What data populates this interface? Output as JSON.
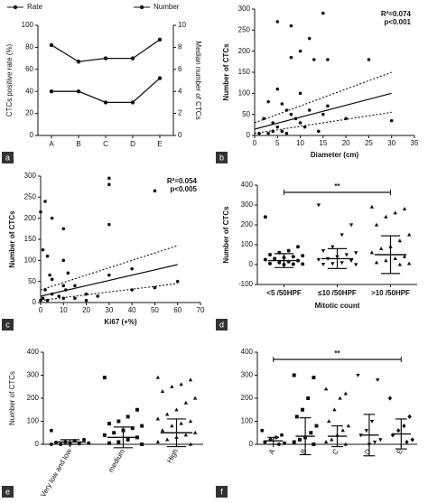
{
  "chart_data": [
    {
      "type": "line",
      "label": "a",
      "categories": [
        "A",
        "B",
        "C",
        "D",
        "E"
      ],
      "series": [
        {
          "name": "Rate",
          "color": "#111111",
          "values": [
            82,
            67,
            70,
            70,
            87
          ]
        },
        {
          "name": "Number",
          "color": "#111111",
          "axis": "y2",
          "values": [
            4,
            4,
            3,
            3,
            5.2
          ]
        }
      ],
      "ylabel": "CTCs positive rate (%)",
      "y2label": "Median number of CTCs",
      "ylim": [
        0,
        100
      ],
      "yticks": [
        0,
        20,
        40,
        60,
        80,
        100
      ],
      "y2lim": [
        0,
        10
      ],
      "y2ticks": [
        0,
        2,
        4,
        6,
        8,
        10
      ]
    },
    {
      "type": "scatter",
      "label": "b",
      "xlabel": "Diameter (cm)",
      "ylabel": "Number of CTCs",
      "annotations": [
        "R²=0.074",
        "p<0.001"
      ],
      "xlim": [
        0,
        35
      ],
      "xticks": [
        0,
        5,
        10,
        15,
        20,
        25,
        30,
        35
      ],
      "ylim": [
        0,
        300
      ],
      "yticks": [
        0,
        50,
        100,
        150,
        200,
        250,
        300
      ],
      "x": [
        5,
        8,
        15,
        12,
        10,
        8,
        13,
        16,
        25,
        30,
        5,
        10,
        3,
        6,
        7,
        12,
        2,
        4,
        5,
        6,
        8,
        9,
        10,
        11,
        14,
        15,
        16,
        3,
        4,
        20,
        1,
        7
      ],
      "y": [
        270,
        260,
        290,
        230,
        200,
        185,
        180,
        180,
        180,
        35,
        110,
        100,
        80,
        75,
        60,
        60,
        40,
        30,
        20,
        10,
        50,
        40,
        30,
        20,
        10,
        50,
        70,
        5,
        10,
        40,
        5,
        5
      ],
      "fit": {
        "x": [
          0,
          30
        ],
        "y": [
          15,
          100
        ]
      },
      "ci_upper": {
        "x": [
          0,
          30
        ],
        "y": [
          30,
          150
        ]
      },
      "ci_lower": {
        "x": [
          0,
          30
        ],
        "y": [
          5,
          55
        ]
      }
    },
    {
      "type": "scatter",
      "label": "c",
      "xlabel": "Ki67 (+%)",
      "ylabel": "Number of CTCs",
      "annotations": [
        "R²=0.054",
        "p<0.005"
      ],
      "xlim": [
        0,
        70
      ],
      "xticks": [
        0,
        10,
        20,
        30,
        40,
        50,
        60,
        70
      ],
      "ylim": [
        0,
        300
      ],
      "yticks": [
        0,
        50,
        100,
        150,
        200,
        250,
        300
      ],
      "x": [
        0,
        2,
        5,
        10,
        30,
        30,
        30,
        50,
        40,
        60,
        1,
        3,
        4,
        5,
        10,
        12,
        15,
        2,
        5,
        8,
        10,
        15,
        20,
        25,
        30,
        40,
        50,
        0,
        1,
        3,
        10,
        11,
        20
      ],
      "y": [
        215,
        240,
        200,
        175,
        295,
        280,
        185,
        265,
        80,
        50,
        125,
        110,
        65,
        55,
        100,
        70,
        40,
        30,
        20,
        15,
        10,
        10,
        20,
        15,
        65,
        30,
        35,
        5,
        10,
        5,
        40,
        30,
        5
      ],
      "fit": {
        "x": [
          0,
          60
        ],
        "y": [
          15,
          90
        ]
      },
      "ci_upper": {
        "x": [
          0,
          60
        ],
        "y": [
          30,
          135
        ]
      },
      "ci_lower": {
        "x": [
          0,
          60
        ],
        "y": [
          5,
          45
        ]
      }
    },
    {
      "type": "dot",
      "label": "d",
      "categories": [
        "<5 /50HPF",
        "≤10 /50HPF",
        ">10 /50HPF"
      ],
      "xlabel": "Mitotic count",
      "ylabel": "Number of CTCs",
      "ylim": [
        -100,
        400
      ],
      "yticks": [
        -100,
        0,
        100,
        200,
        300,
        400
      ],
      "markers": [
        "circle",
        "triangle-down",
        "triangle-up"
      ],
      "rotated_labels": false,
      "points": [
        [
          240,
          90,
          70,
          60,
          50,
          45,
          40,
          35,
          30,
          25,
          20,
          15,
          10,
          5,
          3,
          2,
          0
        ],
        [
          300,
          200,
          150,
          90,
          70,
          60,
          50,
          40,
          30,
          25,
          20,
          10,
          5,
          2,
          0
        ],
        [
          290,
          280,
          260,
          240,
          200,
          150,
          120,
          90,
          80,
          60,
          40,
          30,
          20,
          10,
          5,
          0
        ]
      ],
      "mean": [
        20,
        30,
        50
      ],
      "sd": [
        35,
        50,
        95
      ],
      "significance": {
        "text": "**",
        "from": 0,
        "to": 2
      }
    },
    {
      "type": "dot",
      "label": "e",
      "categories": [
        "Very low and low",
        "medium",
        "High"
      ],
      "ylabel": "Number of CTCs",
      "ylim": [
        0,
        400
      ],
      "yticks": [
        0,
        100,
        200,
        300,
        400
      ],
      "markers": [
        "circle",
        "square",
        "triangle-up"
      ],
      "rotated_labels": true,
      "points": [
        [
          60,
          20,
          15,
          10,
          8,
          5,
          3,
          2,
          0,
          0
        ],
        [
          290,
          150,
          120,
          100,
          90,
          80,
          70,
          60,
          50,
          40,
          30,
          20,
          10,
          5,
          0
        ],
        [
          290,
          280,
          260,
          250,
          230,
          200,
          180,
          150,
          130,
          110,
          100,
          90,
          80,
          60,
          50,
          40,
          30,
          20,
          10,
          0
        ]
      ],
      "mean": [
        10,
        30,
        50
      ],
      "sd": [
        10,
        45,
        60
      ]
    },
    {
      "type": "dot",
      "label": "f",
      "categories": [
        "A",
        "B",
        "C",
        "D",
        "E"
      ],
      "ylim": [
        0,
        400
      ],
      "yticks": [
        0,
        100,
        200,
        300,
        400
      ],
      "markers": [
        "circle",
        "square",
        "triangle-up",
        "triangle-down",
        "diamond"
      ],
      "rotated_labels": true,
      "points": [
        [
          60,
          40,
          30,
          20,
          10,
          5,
          0
        ],
        [
          300,
          290,
          200,
          150,
          120,
          80,
          50,
          30,
          20,
          10,
          0
        ],
        [
          240,
          220,
          200,
          150,
          100,
          80,
          60,
          40,
          20,
          10,
          0
        ],
        [
          300,
          280,
          100,
          60,
          40,
          20,
          10,
          0
        ],
        [
          200,
          120,
          80,
          60,
          40,
          20,
          10
        ]
      ],
      "mean": [
        15,
        35,
        35,
        40,
        45
      ],
      "sd": [
        15,
        80,
        45,
        90,
        65
      ],
      "significance": {
        "text": "**",
        "from": 0,
        "to": 4
      }
    }
  ]
}
